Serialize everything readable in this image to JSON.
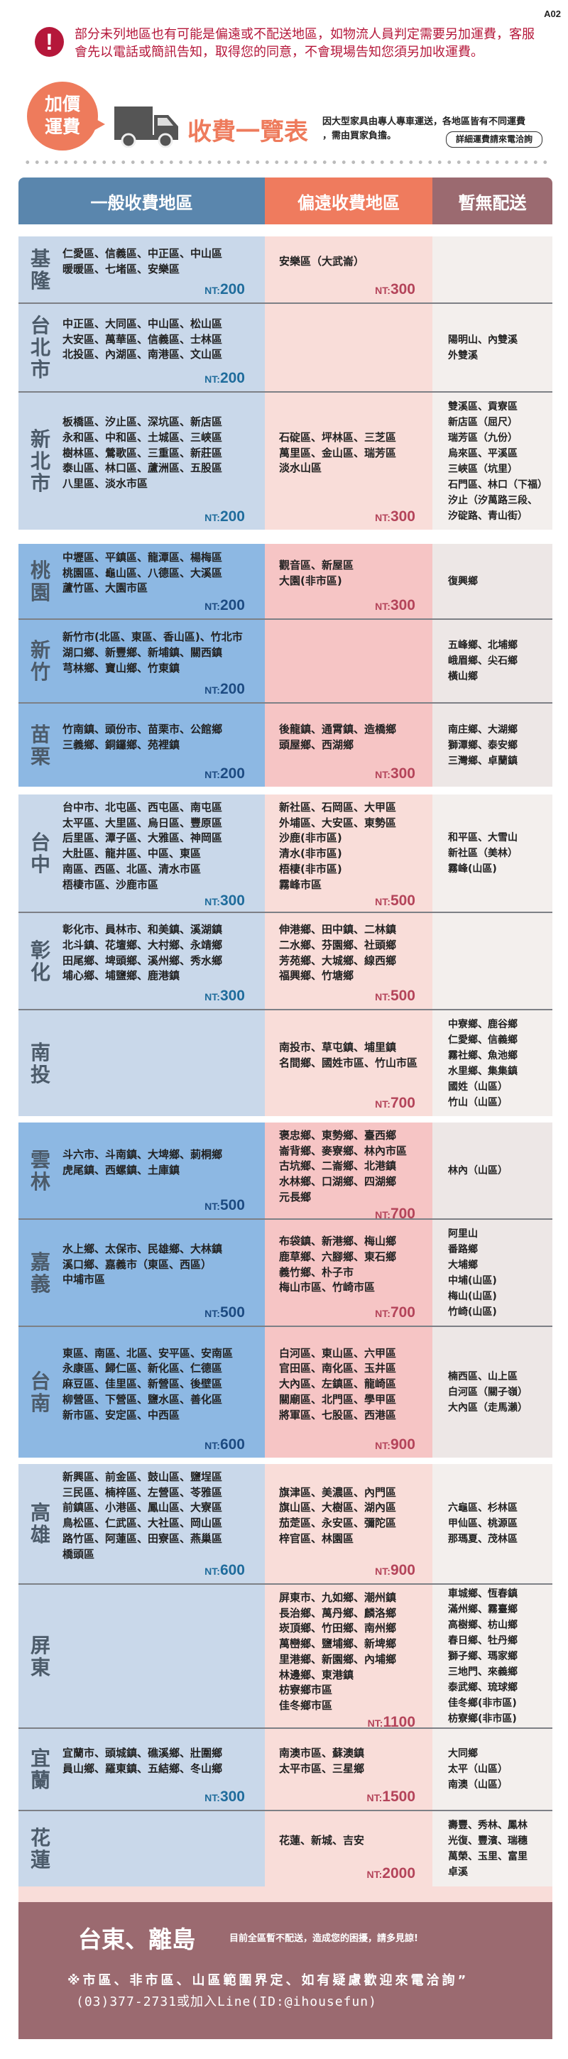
{
  "page_code": "A02",
  "notice": {
    "icon": "exclamation-icon",
    "lines": [
      "部分未列地區也有可能是偏遠或不配送地區，如物流人員判定需要另加運費，客服",
      "會先以電話或簡訊告知，取得您的同意，不會現場告知您須另加收運費。"
    ]
  },
  "banner": {
    "badge_lines": [
      "加價",
      "運費"
    ],
    "title": "收費一覽表",
    "desc_lines": [
      "因大型家具由專人專車運送，各地區皆有不同運費",
      "，需由買家負擔。"
    ],
    "detail_button": "詳細運費請來電洽詢"
  },
  "colors": {
    "general": "#5a86ad",
    "remote": "#ef7b5e",
    "none": "#9b6a70",
    "footer": "#9b6a70"
  },
  "header": {
    "general": "一般收費地區",
    "remote": "偏遠收費地區",
    "none": "暫無配送"
  },
  "price_prefix": "NT:",
  "groups": [
    {
      "style": "light",
      "regions": [
        {
          "name": "基隆",
          "general": [
            "仁愛區、信義區、中正區、中山區",
            "暖暖區、七堵區、安樂區"
          ],
          "general_price": "200",
          "remote": [
            "安樂區（大武崙）"
          ],
          "remote_price": "300",
          "none": []
        },
        {
          "name": "台北市",
          "general": [
            "中正區、大同區、中山區、松山區",
            "大安區、萬華區、信義區、士林區",
            "北投區、內湖區、南港區、文山區"
          ],
          "general_price": "200",
          "remote": [],
          "remote_price": "",
          "none": [
            "陽明山、內雙溪",
            "外雙溪"
          ]
        },
        {
          "name": "新北市",
          "general": [
            "板橋區、汐止區、深坑區、新店區",
            "永和區、中和區、土城區、三峽區",
            "樹林區、鶯歌區、三重區、新莊區",
            "泰山區、林口區、蘆洲區、五股區",
            "八里區、淡水市區"
          ],
          "general_price": "200",
          "remote": [
            "石碇區、坪林區、三芝區",
            "萬里區、金山區、瑞芳區",
            "淡水山區"
          ],
          "remote_price": "300",
          "none": [
            "雙溪區、貢寮區",
            "新店區（屈尺）",
            "瑞芳區（九份）",
            "烏來區、平溪區",
            "三峽區（坑里）",
            "石門區、林口（下福）",
            "汐止（汐萬路三段、",
            "汐碇路、青山街）"
          ]
        }
      ]
    },
    {
      "style": "strong",
      "regions": [
        {
          "name": "桃園",
          "general": [
            "中壢區、平鎮區、龍潭區、楊梅區",
            "桃園區、龜山區、八德區、大溪區",
            "蘆竹區、大園市區"
          ],
          "general_price": "200",
          "remote": [
            "觀音區、新屋區",
            "大園(非市區)"
          ],
          "remote_price": "300",
          "none": [
            "復興鄉"
          ]
        },
        {
          "name": "新竹",
          "general": [
            "新竹市(北區、東區、香山區)、竹北市",
            "湖口鄉、新豐鄉、新埔鎮、關西鎮",
            "芎林鄉、寶山鄉、竹東鎮"
          ],
          "general_price": "200",
          "remote": [],
          "remote_price": "",
          "none": [
            "五峰鄉、北埔鄉",
            "峨眉鄉、尖石鄉",
            "橫山鄉"
          ]
        },
        {
          "name": "苗栗",
          "general": [
            "竹南鎮、頭份市、苗栗市、公館鄉",
            "三義鄉、銅鑼鄉、苑裡鎮"
          ],
          "general_price": "200",
          "remote": [
            "後龍鎮、通霄鎮、造橋鄉",
            "頭屋鄉、西湖鄉"
          ],
          "remote_price": "300",
          "none": [
            "南庄鄉、大湖鄉",
            "獅潭鄉、泰安鄉",
            "三灣鄉、卓蘭鎮"
          ]
        }
      ]
    },
    {
      "style": "light",
      "regions": [
        {
          "name": "台中",
          "general": [
            "台中市、北屯區、西屯區、南屯區",
            "太平區、大里區、烏日區、豐原區",
            "后里區、潭子區、大雅區、神岡區",
            "大肚區、龍井區、中區、東區",
            "南區、西區、北區、清水市區",
            "梧棲市區、沙鹿市區"
          ],
          "general_price": "300",
          "remote": [
            "新社區、石岡區、大甲區",
            "外埔區、大安區、東勢區",
            "沙鹿(非市區)",
            "清水(非市區)",
            "梧棲(非市區)",
            "霧峰市區"
          ],
          "remote_price": "500",
          "none": [
            "和平區、大雪山",
            "新社區（美林）",
            "霧峰(山區)"
          ]
        },
        {
          "name": "彰化",
          "general": [
            "彰化市、員林市、和美鎮、溪湖鎮",
            "北斗鎮、花壇鄉、大村鄉、永靖鄉",
            "田尾鄉、埤頭鄉、溪州鄉、秀水鄉",
            "埔心鄉、埔鹽鄉、鹿港鎮"
          ],
          "general_price": "300",
          "remote": [
            "伸港鄉、田中鎮、二林鎮",
            "二水鄉、芬園鄉、社頭鄉",
            "芳苑鄉、大城鄉、線西鄉",
            "福興鄉、竹塘鄉"
          ],
          "remote_price": "500",
          "none": []
        },
        {
          "name": "南投",
          "general": [],
          "general_price": "",
          "remote": [
            "南投市、草屯鎮、埔里鎮",
            "名間鄉、國姓市區、竹山市區"
          ],
          "remote_price": "700",
          "none": [
            "中寮鄉、鹿谷鄉",
            "仁愛鄉、信義鄉",
            "霧社鄉、魚池鄉",
            "水里鄉、集集鎮",
            "國姓（山區）",
            "竹山（山區）"
          ]
        }
      ]
    },
    {
      "style": "strong",
      "regions": [
        {
          "name": "雲林",
          "general": [
            "斗六市、斗南鎮、大埤鄉、莿桐鄉",
            "虎尾鎮、西螺鎮、土庫鎮"
          ],
          "general_price": "500",
          "remote": [
            "褒忠鄉、東勢鄉、臺西鄉",
            "崙背鄉、麥寮鄉、林內市區",
            "古坑鄉、二崙鄉、北港鎮",
            "水林鄉、口湖鄉、四湖鄉",
            "元長鄉"
          ],
          "remote_price": "700",
          "none": [
            "林內（山區）"
          ]
        },
        {
          "name": "嘉義",
          "general": [
            "水上鄉、太保市、民雄鄉、大林鎮",
            "溪口鄉、嘉義市（東區、西區）",
            "中埔市區"
          ],
          "general_price": "500",
          "remote": [
            "布袋鎮、新港鄉、梅山鄉",
            "鹿草鄉、六腳鄉、東石鄉",
            "義竹鄉、朴子市",
            "梅山市區、竹崎市區"
          ],
          "remote_price": "700",
          "none": [
            "阿里山",
            "番路鄉",
            "大埔鄉",
            "中埔(山區)",
            "梅山(山區)",
            "竹崎(山區)"
          ]
        },
        {
          "name": "台南",
          "general": [
            "東區、南區、北區、安平區、安南區",
            "永康區、歸仁區、新化區、仁德區",
            "麻豆區、佳里區、新營區、後壁區",
            "柳營區、下營區、鹽水區、善化區",
            "新市區、安定區、中西區"
          ],
          "general_price": "600",
          "remote": [
            "白河區、東山區、六甲區",
            "官田區、南化區、玉井區",
            "大內區、左鎮區、龍崎區",
            "關廟區、北門區、學甲區",
            "將軍區、七股區、西港區"
          ],
          "remote_price": "900",
          "none": [
            "楠西區、山上區",
            "白河區（關子嶺）",
            "大內區（走馬瀨）"
          ]
        }
      ]
    },
    {
      "style": "light",
      "regions": [
        {
          "name": "高雄",
          "general": [
            "新興區、前金區、鼓山區、鹽埕區",
            "三民區、楠梓區、左營區、苓雅區",
            "前鎮區、小港區、鳳山區、大寮區",
            "鳥松區、仁武區、大社區、岡山區",
            "路竹區、阿蓮區、田寮區、燕巢區",
            "橋頭區"
          ],
          "general_price": "600",
          "remote": [
            "旗津區、美濃區、內門區",
            "旗山區、大樹區、湖內區",
            "茄萣區、永安區、彌陀區",
            "梓官區、林園區"
          ],
          "remote_price": "900",
          "none": [
            "六龜區、杉林區",
            "甲仙區、桃源區",
            "那瑪夏、茂林區"
          ]
        },
        {
          "name": "屏東",
          "general": [],
          "general_price": "",
          "remote": [
            "屏東市、九如鄉、潮州鎮",
            "長治鄉、萬丹鄉、麟洛鄉",
            "崁頂鄉、竹田鄉、南州鄉",
            "萬巒鄉、鹽埔鄉、新埤鄉",
            "里港鄉、新園鄉、內埔鄉",
            "林邊鄉、東港鎮",
            "枋寮鄉市區",
            "佳冬鄉市區"
          ],
          "remote_price": "1100",
          "none": [
            "車城鄉、恆春鎮",
            "滿州鄉、霧臺鄉",
            "高樹鄉、枋山鄉",
            "春日鄉、牡丹鄉",
            "獅子鄉、瑪家鄉",
            "三地門、來義鄉",
            "泰武鄉、琉球鄉",
            "佳冬鄉(非市區)",
            "枋寮鄉(非市區)"
          ]
        },
        {
          "name": "宜蘭",
          "general": [
            "宜蘭市、頭城鎮、礁溪鄉、壯圍鄉",
            "員山鄉、羅東鎮、五結鄉、冬山鄉"
          ],
          "general_price": "300",
          "remote": [
            "南澳市區、蘇澳鎮",
            "太平市區、三星鄉"
          ],
          "remote_price": "1500",
          "none": [
            "大同鄉",
            "太平（山區）",
            "南澳（山區）"
          ]
        },
        {
          "name": "花蓮",
          "general": [],
          "general_price": "",
          "remote": [
            "花蓮、新城、吉安"
          ],
          "remote_price": "2000",
          "none": [
            "壽豐、秀林、鳳林",
            "光復、豐濱、瑞穗",
            "萬榮、玉里、富里",
            "卓溪"
          ]
        }
      ]
    }
  ],
  "footer": {
    "title": "台東、離島",
    "subtitle": "目前全區暫不配送，造成您的困擾，請多見諒!",
    "note": "※市區、非市區、山區範圍界定、如有疑慮歡迎來電洽詢”",
    "contact": "(03)377-2731或加入Line(ID:@ihousefun)"
  }
}
